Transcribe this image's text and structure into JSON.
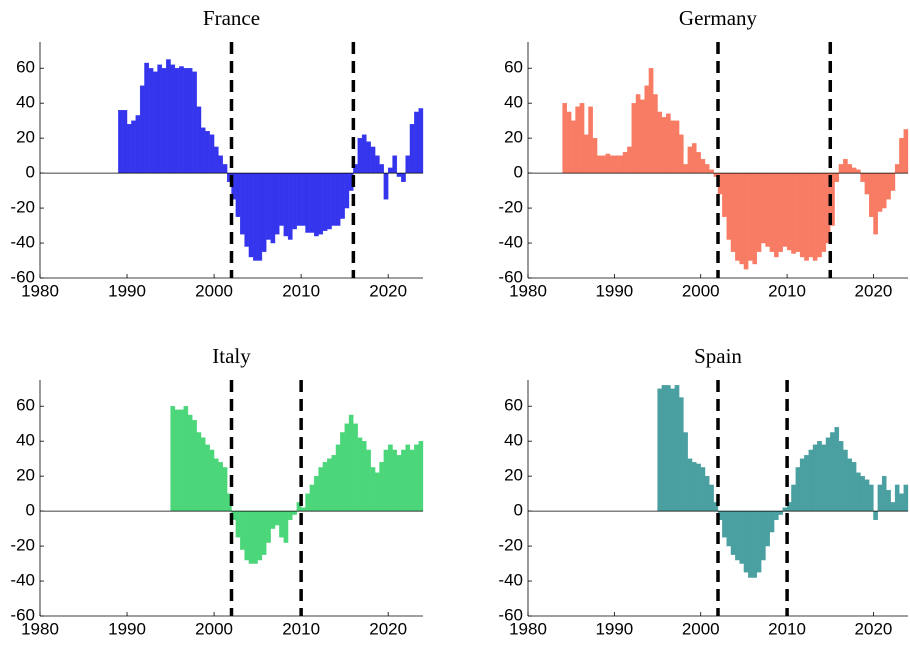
{
  "chart_data": [
    {
      "type": "bar",
      "title": "France",
      "color": "#3535ee",
      "x": [
        1989,
        1989.5,
        1990,
        1990.5,
        1991,
        1991.5,
        1992,
        1992.5,
        1993,
        1993.5,
        1994,
        1994.5,
        1995,
        1995.5,
        1996,
        1996.5,
        1997,
        1997.5,
        1998,
        1998.5,
        1999,
        1999.5,
        2000,
        2000.5,
        2001,
        2001.5,
        2002,
        2002.5,
        2003,
        2003.5,
        2004,
        2004.5,
        2005,
        2005.5,
        2006,
        2006.5,
        2007,
        2007.5,
        2008,
        2008.5,
        2009,
        2009.5,
        2010,
        2010.5,
        2011,
        2011.5,
        2012,
        2012.5,
        2013,
        2013.5,
        2014,
        2014.5,
        2015,
        2015.5,
        2016,
        2016.5,
        2017,
        2017.5,
        2018,
        2018.5,
        2019,
        2019.5,
        2020,
        2020.5,
        2021,
        2021.5,
        2022,
        2022.5,
        2023,
        2023.5
      ],
      "values": [
        36,
        36,
        28,
        30,
        33,
        50,
        63,
        60,
        58,
        62,
        60,
        65,
        62,
        60,
        61,
        60,
        60,
        58,
        38,
        26,
        24,
        22,
        15,
        10,
        5,
        -5,
        -15,
        -25,
        -35,
        -42,
        -48,
        -50,
        -50,
        -45,
        -38,
        -40,
        -35,
        -30,
        -36,
        -38,
        -32,
        -30,
        -30,
        -34,
        -34,
        -36,
        -35,
        -33,
        -32,
        -30,
        -30,
        -26,
        -20,
        -10,
        5,
        20,
        22,
        18,
        15,
        10,
        5,
        -15,
        3,
        10,
        -2,
        -5,
        10,
        28,
        35,
        37
      ],
      "xlim": [
        1980,
        2024
      ],
      "ylim": [
        -60,
        75
      ],
      "xticks": [
        1980,
        1990,
        2000,
        2010,
        2020
      ],
      "yticks": [
        -60,
        -40,
        -20,
        0,
        20,
        40,
        60
      ],
      "vlines": [
        2002,
        2016
      ]
    },
    {
      "type": "bar",
      "title": "Germany",
      "color": "#f87b64",
      "x": [
        1984,
        1984.5,
        1985,
        1985.5,
        1986,
        1986.5,
        1987,
        1987.5,
        1988,
        1988.5,
        1989,
        1989.5,
        1990,
        1990.5,
        1991,
        1991.5,
        1992,
        1992.5,
        1993,
        1993.5,
        1994,
        1994.5,
        1995,
        1995.5,
        1996,
        1996.5,
        1997,
        1997.5,
        1998,
        1998.5,
        1999,
        1999.5,
        2000,
        2000.5,
        2001,
        2001.5,
        2002,
        2002.5,
        2003,
        2003.5,
        2004,
        2004.5,
        2005,
        2005.5,
        2006,
        2006.5,
        2007,
        2007.5,
        2008,
        2008.5,
        2009,
        2009.5,
        2010,
        2010.5,
        2011,
        2011.5,
        2012,
        2012.5,
        2013,
        2013.5,
        2014,
        2014.5,
        2015,
        2015.5,
        2016,
        2016.5,
        2017,
        2017.5,
        2018,
        2018.5,
        2019,
        2019.5,
        2020,
        2020.5,
        2021,
        2021.5,
        2022,
        2022.5,
        2023,
        2023.5
      ],
      "values": [
        40,
        35,
        30,
        38,
        40,
        22,
        38,
        20,
        10,
        10,
        11,
        10,
        10,
        10,
        12,
        15,
        40,
        45,
        42,
        50,
        60,
        45,
        35,
        32,
        34,
        30,
        30,
        22,
        5,
        15,
        17,
        12,
        8,
        5,
        2,
        -2,
        -12,
        -25,
        -38,
        -45,
        -50,
        -52,
        -55,
        -50,
        -52,
        -45,
        -40,
        -42,
        -45,
        -48,
        -45,
        -42,
        -44,
        -46,
        -45,
        -48,
        -50,
        -48,
        -50,
        -48,
        -45,
        -40,
        -30,
        -5,
        5,
        8,
        5,
        3,
        2,
        -5,
        -12,
        -25,
        -35,
        -22,
        -20,
        -15,
        -10,
        5,
        20,
        25
      ],
      "xlim": [
        1980,
        2024
      ],
      "ylim": [
        -60,
        75
      ],
      "xticks": [
        1980,
        1990,
        2000,
        2010,
        2020
      ],
      "yticks": [
        -60,
        -40,
        -20,
        0,
        20,
        40,
        60
      ],
      "vlines": [
        2002,
        2015
      ]
    },
    {
      "type": "bar",
      "title": "Italy",
      "color": "#4cd67a",
      "x": [
        1995,
        1995.5,
        1996,
        1996.5,
        1997,
        1997.5,
        1998,
        1998.5,
        1999,
        1999.5,
        2000,
        2000.5,
        2001,
        2001.5,
        2002,
        2002.5,
        2003,
        2003.5,
        2004,
        2004.5,
        2005,
        2005.5,
        2006,
        2006.5,
        2007,
        2007.5,
        2008,
        2008.5,
        2009,
        2009.5,
        2010,
        2010.5,
        2011,
        2011.5,
        2012,
        2012.5,
        2013,
        2013.5,
        2014,
        2014.5,
        2015,
        2015.5,
        2016,
        2016.5,
        2017,
        2017.5,
        2018,
        2018.5,
        2019,
        2019.5,
        2020,
        2020.5,
        2021,
        2021.5,
        2022,
        2022.5,
        2023,
        2023.5
      ],
      "values": [
        60,
        58,
        58,
        60,
        55,
        52,
        45,
        42,
        38,
        35,
        30,
        28,
        25,
        10,
        -5,
        -15,
        -22,
        -28,
        -30,
        -30,
        -28,
        -25,
        -18,
        -10,
        -8,
        -15,
        -18,
        -5,
        -2,
        5,
        2,
        10,
        15,
        20,
        25,
        28,
        30,
        32,
        38,
        45,
        50,
        55,
        50,
        42,
        40,
        35,
        25,
        22,
        28,
        35,
        38,
        35,
        32,
        35,
        38,
        35,
        38,
        40
      ],
      "xlim": [
        1980,
        2024
      ],
      "ylim": [
        -60,
        75
      ],
      "xticks": [
        1980,
        1990,
        2000,
        2010,
        2020
      ],
      "yticks": [
        -60,
        -40,
        -20,
        0,
        20,
        40,
        60
      ],
      "vlines": [
        2002,
        2010
      ]
    },
    {
      "type": "bar",
      "title": "Spain",
      "color": "#4a9fa0",
      "x": [
        1995,
        1995.5,
        1996,
        1996.5,
        1997,
        1997.5,
        1998,
        1998.5,
        1999,
        1999.5,
        2000,
        2000.5,
        2001,
        2001.5,
        2002,
        2002.5,
        2003,
        2003.5,
        2004,
        2004.5,
        2005,
        2005.5,
        2006,
        2006.5,
        2007,
        2007.5,
        2008,
        2008.5,
        2009,
        2009.5,
        2010,
        2010.5,
        2011,
        2011.5,
        2012,
        2012.5,
        2013,
        2013.5,
        2014,
        2014.5,
        2015,
        2015.5,
        2016,
        2016.5,
        2017,
        2017.5,
        2018,
        2018.5,
        2019,
        2019.5,
        2020,
        2020.5,
        2021,
        2021.5,
        2022,
        2022.5,
        2023,
        2023.5
      ],
      "values": [
        70,
        72,
        72,
        70,
        72,
        65,
        45,
        30,
        28,
        27,
        25,
        20,
        15,
        5,
        -5,
        -15,
        -20,
        -25,
        -28,
        -30,
        -35,
        -38,
        -38,
        -35,
        -28,
        -20,
        -12,
        -5,
        -2,
        2,
        5,
        15,
        25,
        30,
        32,
        35,
        38,
        40,
        38,
        42,
        45,
        48,
        40,
        35,
        30,
        28,
        22,
        20,
        18,
        15,
        -5,
        15,
        20,
        12,
        5,
        15,
        10,
        15
      ],
      "xlim": [
        1980,
        2024
      ],
      "ylim": [
        -60,
        75
      ],
      "xticks": [
        1980,
        1990,
        2000,
        2010,
        2020
      ],
      "yticks": [
        -60,
        -40,
        -20,
        0,
        20,
        40,
        60
      ],
      "vlines": [
        2002,
        2010
      ]
    }
  ]
}
